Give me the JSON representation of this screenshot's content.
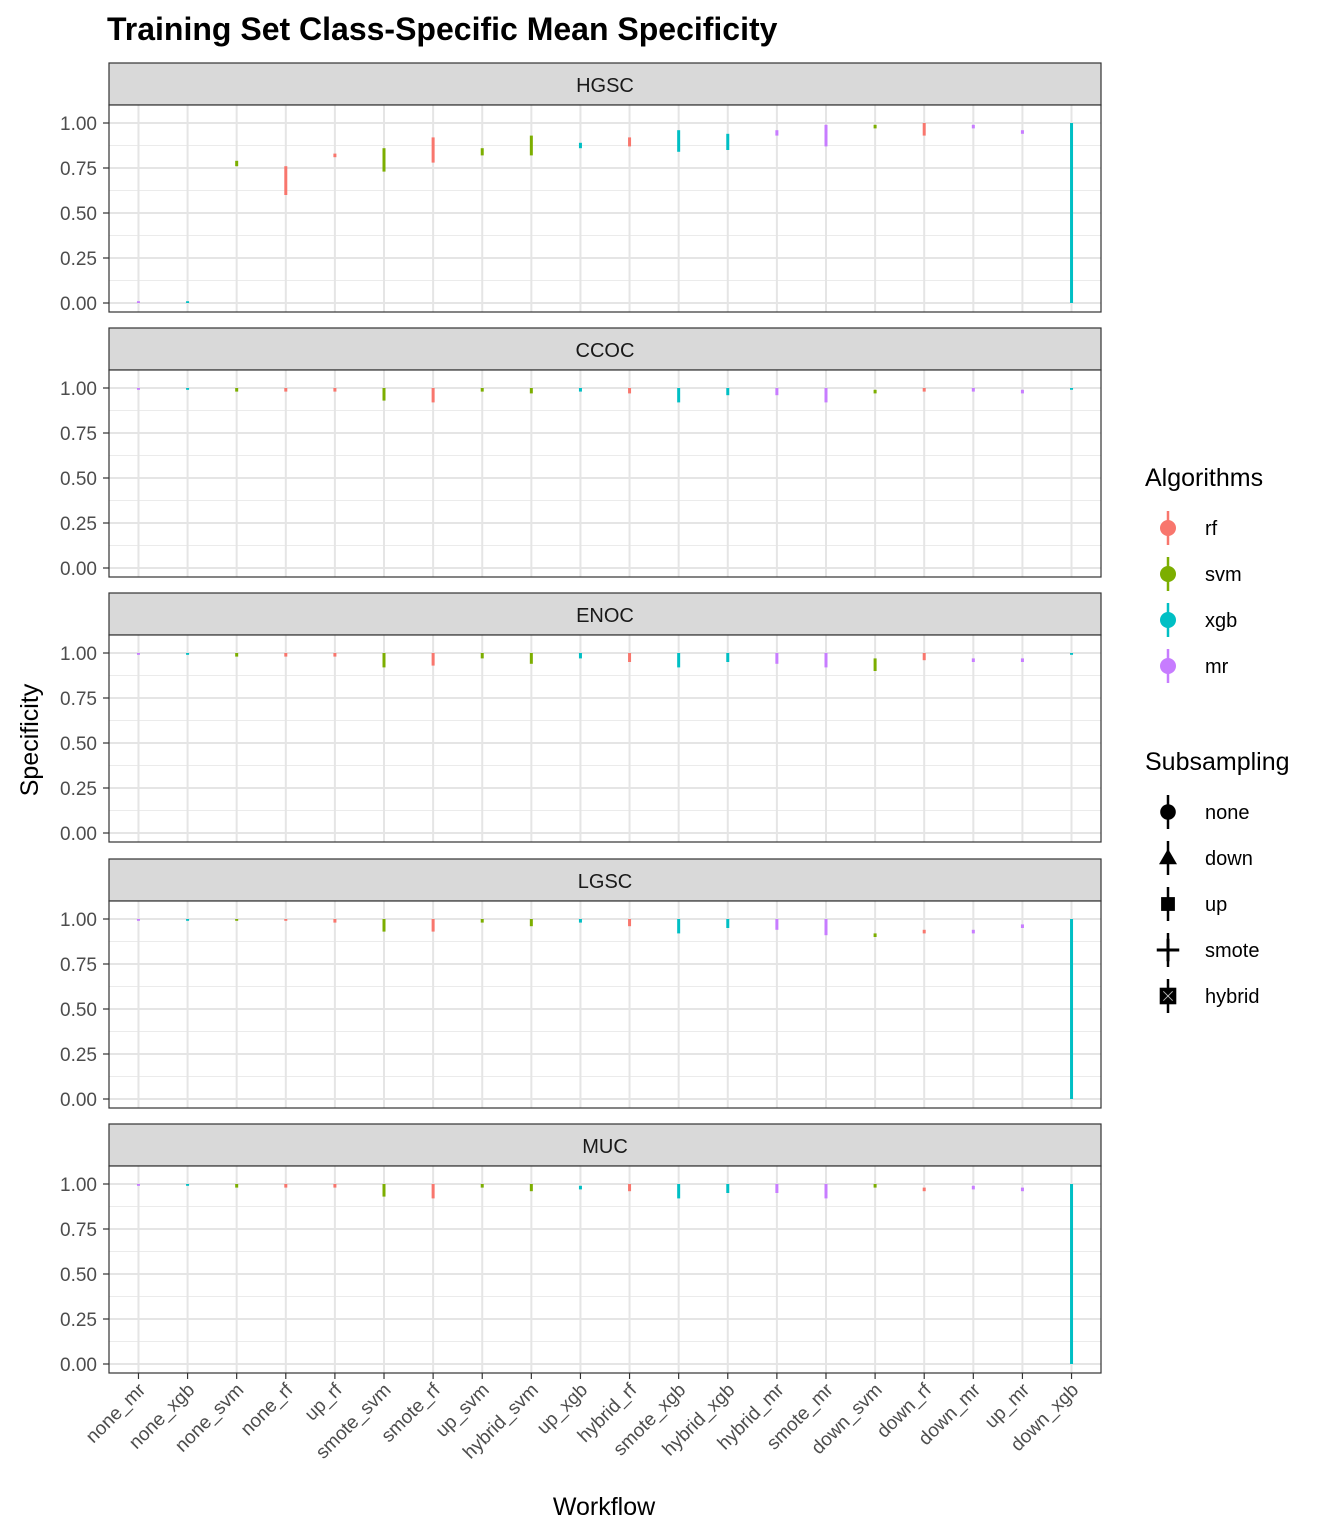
{
  "chart_data": {
    "type": "scatter",
    "title": "Training Set Class-Specific Mean Specificity",
    "xlabel": "Workflow",
    "ylabel": "Specificity",
    "ylim": [
      0,
      1.05
    ],
    "y_ticks": [
      "0.00",
      "0.25",
      "0.50",
      "0.75",
      "1.00"
    ],
    "y_tick_values": [
      0,
      0.25,
      0.5,
      0.75,
      1.0
    ],
    "categories": [
      "none_mr",
      "none_xgb",
      "none_svm",
      "none_rf",
      "up_rf",
      "smote_svm",
      "smote_rf",
      "up_svm",
      "hybrid_svm",
      "up_xgb",
      "hybrid_rf",
      "smote_xgb",
      "hybrid_xgb",
      "hybrid_mr",
      "smote_mr",
      "down_svm",
      "down_rf",
      "down_mr",
      "up_mr",
      "down_xgb"
    ],
    "algorithm": [
      "mr",
      "xgb",
      "svm",
      "rf",
      "rf",
      "svm",
      "rf",
      "svm",
      "svm",
      "xgb",
      "rf",
      "xgb",
      "xgb",
      "mr",
      "mr",
      "svm",
      "rf",
      "mr",
      "mr",
      "xgb"
    ],
    "subsampling": [
      "none",
      "none",
      "none",
      "none",
      "up",
      "smote",
      "smote",
      "up",
      "hybrid",
      "up",
      "hybrid",
      "smote",
      "hybrid",
      "hybrid",
      "smote",
      "down",
      "down",
      "down",
      "up",
      "down"
    ],
    "panels": [
      {
        "name": "HGSC",
        "mean": [
          0.0,
          0.0,
          0.77,
          0.68,
          0.82,
          0.8,
          0.85,
          0.84,
          0.88,
          0.87,
          0.89,
          0.9,
          0.89,
          0.94,
          0.94,
          0.98,
          0.97,
          0.98,
          0.95,
          0.8
        ],
        "lower": [
          0.0,
          0.0,
          0.76,
          0.6,
          0.81,
          0.73,
          0.78,
          0.82,
          0.82,
          0.86,
          0.87,
          0.84,
          0.85,
          0.93,
          0.87,
          0.97,
          0.93,
          0.97,
          0.94,
          0.0
        ],
        "upper": [
          0.01,
          0.01,
          0.79,
          0.76,
          0.83,
          0.86,
          0.92,
          0.86,
          0.93,
          0.89,
          0.92,
          0.96,
          0.94,
          0.96,
          0.99,
          0.99,
          1.0,
          0.99,
          0.96,
          1.0
        ]
      },
      {
        "name": "CCOC",
        "mean": [
          1.0,
          1.0,
          0.99,
          0.99,
          0.99,
          0.99,
          0.99,
          0.99,
          0.99,
          0.99,
          0.99,
          0.99,
          0.99,
          0.99,
          0.99,
          0.98,
          0.99,
          0.99,
          0.98,
          1.0
        ],
        "lower": [
          0.99,
          0.99,
          0.98,
          0.98,
          0.98,
          0.93,
          0.92,
          0.98,
          0.97,
          0.98,
          0.97,
          0.92,
          0.96,
          0.96,
          0.92,
          0.97,
          0.98,
          0.98,
          0.97,
          0.99
        ],
        "upper": [
          1.0,
          1.0,
          1.0,
          1.0,
          1.0,
          1.0,
          1.0,
          1.0,
          1.0,
          1.0,
          1.0,
          1.0,
          1.0,
          1.0,
          1.0,
          0.99,
          1.0,
          1.0,
          0.99,
          1.0
        ]
      },
      {
        "name": "ENOC",
        "mean": [
          1.0,
          1.0,
          0.99,
          0.99,
          0.99,
          0.98,
          0.98,
          0.98,
          0.97,
          0.98,
          0.98,
          0.98,
          0.98,
          0.97,
          0.97,
          0.94,
          0.98,
          0.96,
          0.96,
          1.0
        ],
        "lower": [
          0.99,
          0.99,
          0.98,
          0.98,
          0.98,
          0.92,
          0.93,
          0.97,
          0.94,
          0.97,
          0.95,
          0.92,
          0.95,
          0.94,
          0.92,
          0.9,
          0.96,
          0.95,
          0.95,
          0.99
        ],
        "upper": [
          1.0,
          1.0,
          1.0,
          1.0,
          1.0,
          1.0,
          1.0,
          1.0,
          1.0,
          1.0,
          1.0,
          1.0,
          1.0,
          1.0,
          1.0,
          0.97,
          1.0,
          0.97,
          0.97,
          1.0
        ]
      },
      {
        "name": "LGSC",
        "mean": [
          1.0,
          1.0,
          1.0,
          1.0,
          0.99,
          0.99,
          0.99,
          0.99,
          0.99,
          0.99,
          0.99,
          0.98,
          0.98,
          0.97,
          0.97,
          0.91,
          0.93,
          0.93,
          0.96,
          0.6
        ],
        "lower": [
          0.99,
          0.99,
          0.99,
          0.99,
          0.98,
          0.93,
          0.93,
          0.98,
          0.96,
          0.98,
          0.96,
          0.92,
          0.95,
          0.94,
          0.91,
          0.9,
          0.92,
          0.92,
          0.95,
          0.0
        ],
        "upper": [
          1.0,
          1.0,
          1.0,
          1.0,
          1.0,
          1.0,
          1.0,
          1.0,
          1.0,
          1.0,
          1.0,
          1.0,
          1.0,
          1.0,
          1.0,
          0.92,
          0.94,
          0.94,
          0.97,
          1.0
        ]
      },
      {
        "name": "MUC",
        "mean": [
          1.0,
          1.0,
          0.99,
          0.99,
          0.99,
          0.99,
          0.99,
          0.99,
          0.99,
          0.98,
          0.98,
          0.98,
          0.98,
          0.98,
          0.98,
          0.99,
          0.97,
          0.98,
          0.97,
          0.6
        ],
        "lower": [
          0.99,
          0.99,
          0.98,
          0.98,
          0.98,
          0.93,
          0.92,
          0.98,
          0.96,
          0.97,
          0.96,
          0.92,
          0.95,
          0.95,
          0.92,
          0.98,
          0.96,
          0.97,
          0.96,
          0.0
        ],
        "upper": [
          1.0,
          1.0,
          1.0,
          1.0,
          1.0,
          1.0,
          1.0,
          1.0,
          1.0,
          0.99,
          1.0,
          1.0,
          1.0,
          1.0,
          1.0,
          1.0,
          0.98,
          0.99,
          0.98,
          1.0
        ]
      }
    ],
    "legend_algorithms": {
      "title": "Algorithms",
      "items": [
        {
          "label": "rf",
          "color": "#F8766D"
        },
        {
          "label": "svm",
          "color": "#7CAE00"
        },
        {
          "label": "xgb",
          "color": "#00BFC4"
        },
        {
          "label": "mr",
          "color": "#C77CFF"
        }
      ]
    },
    "legend_subsampling": {
      "title": "Subsampling",
      "items": [
        {
          "label": "none",
          "shape": "circle"
        },
        {
          "label": "down",
          "shape": "triangle"
        },
        {
          "label": "up",
          "shape": "square"
        },
        {
          "label": "smote",
          "shape": "plus"
        },
        {
          "label": "hybrid",
          "shape": "boxed-x"
        }
      ]
    },
    "legend_placement": "right",
    "grid": true
  }
}
